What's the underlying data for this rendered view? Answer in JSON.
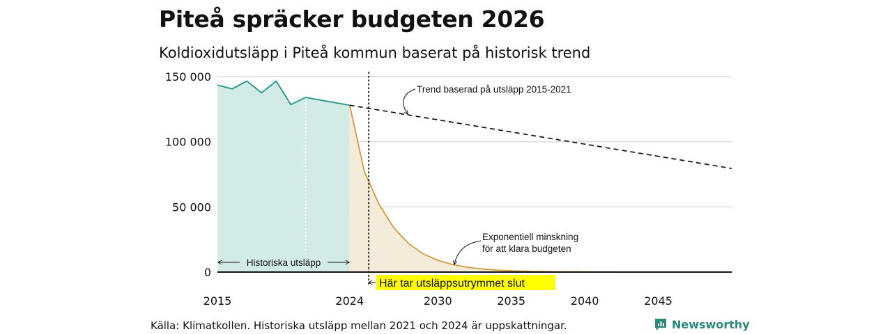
{
  "page": {
    "title": "Piteå spräcker budgeten 2026",
    "subtitle": "Koldioxidutsläpp i Piteå kommun baserat på historisk trend",
    "source": "Källa: Klimatkollen. Historiska utsläpp mellan 2021 och 2024 är uppskattningar.",
    "brand": "Newsworthy",
    "brand_icon": "bar-chart-logo-icon",
    "brand_color": "#2a8a7e"
  },
  "chart_data": {
    "type": "area",
    "title": "Piteå spräcker budgeten 2026",
    "subtitle": "Koldioxidutsläpp i Piteå kommun baserat på historisk trend",
    "xlim": [
      2015,
      2050
    ],
    "ylim": [
      0,
      150000
    ],
    "y_ticks": [
      {
        "value": 0,
        "label": "0"
      },
      {
        "value": 50000,
        "label": "50 000"
      },
      {
        "value": 100000,
        "label": "100 000"
      },
      {
        "value": 150000,
        "label": "150 000"
      }
    ],
    "x_ticks": [
      {
        "value": 2015,
        "label": "2015"
      },
      {
        "value": 2024,
        "label": "2024"
      },
      {
        "value": 2030,
        "label": "2030"
      },
      {
        "value": 2035,
        "label": "2035"
      },
      {
        "value": 2040,
        "label": "2040"
      },
      {
        "value": 2045,
        "label": "2045"
      }
    ],
    "grid": true,
    "series": [
      {
        "style": "historical",
        "color": "#1a9483",
        "fill": "#d3ebe6",
        "x": [
          2015,
          2016,
          2017,
          2018,
          2019,
          2020,
          2021,
          2024
        ],
        "y": [
          143500,
          140500,
          146500,
          137500,
          146500,
          128500,
          134000,
          128000
        ]
      },
      {
        "style": "exponential",
        "color": "#d49a3a",
        "fill": "#f5ebdb",
        "x": [
          2024,
          2025,
          2026,
          2027,
          2028,
          2029,
          2030,
          2031,
          2032,
          2033,
          2034,
          2035,
          2036,
          2037,
          2038,
          2039,
          2040,
          2045,
          2050
        ],
        "y": [
          128000,
          77000,
          52000,
          34000,
          22000,
          14000,
          9000,
          5800,
          3700,
          2400,
          1500,
          1000,
          650,
          420,
          270,
          170,
          110,
          10,
          0
        ]
      },
      {
        "style": "trend",
        "color": "#111111",
        "x": [
          2024,
          2050
        ],
        "y": [
          128000,
          79500
        ]
      }
    ],
    "markers": {
      "budget_end_year": 2025.3,
      "estimate_divider_year": 2021
    },
    "annotations": {
      "historical": "Historiska utsläpp",
      "trend": "Trend baserad på utsläpp 2015-2021",
      "exponential_line1": "Exponentiell minskning",
      "exponential_line2": "för att klara budgeten",
      "budget_end": "Här tar utsläppsutrymmet slut",
      "highlight_color": "#ffff00"
    }
  }
}
